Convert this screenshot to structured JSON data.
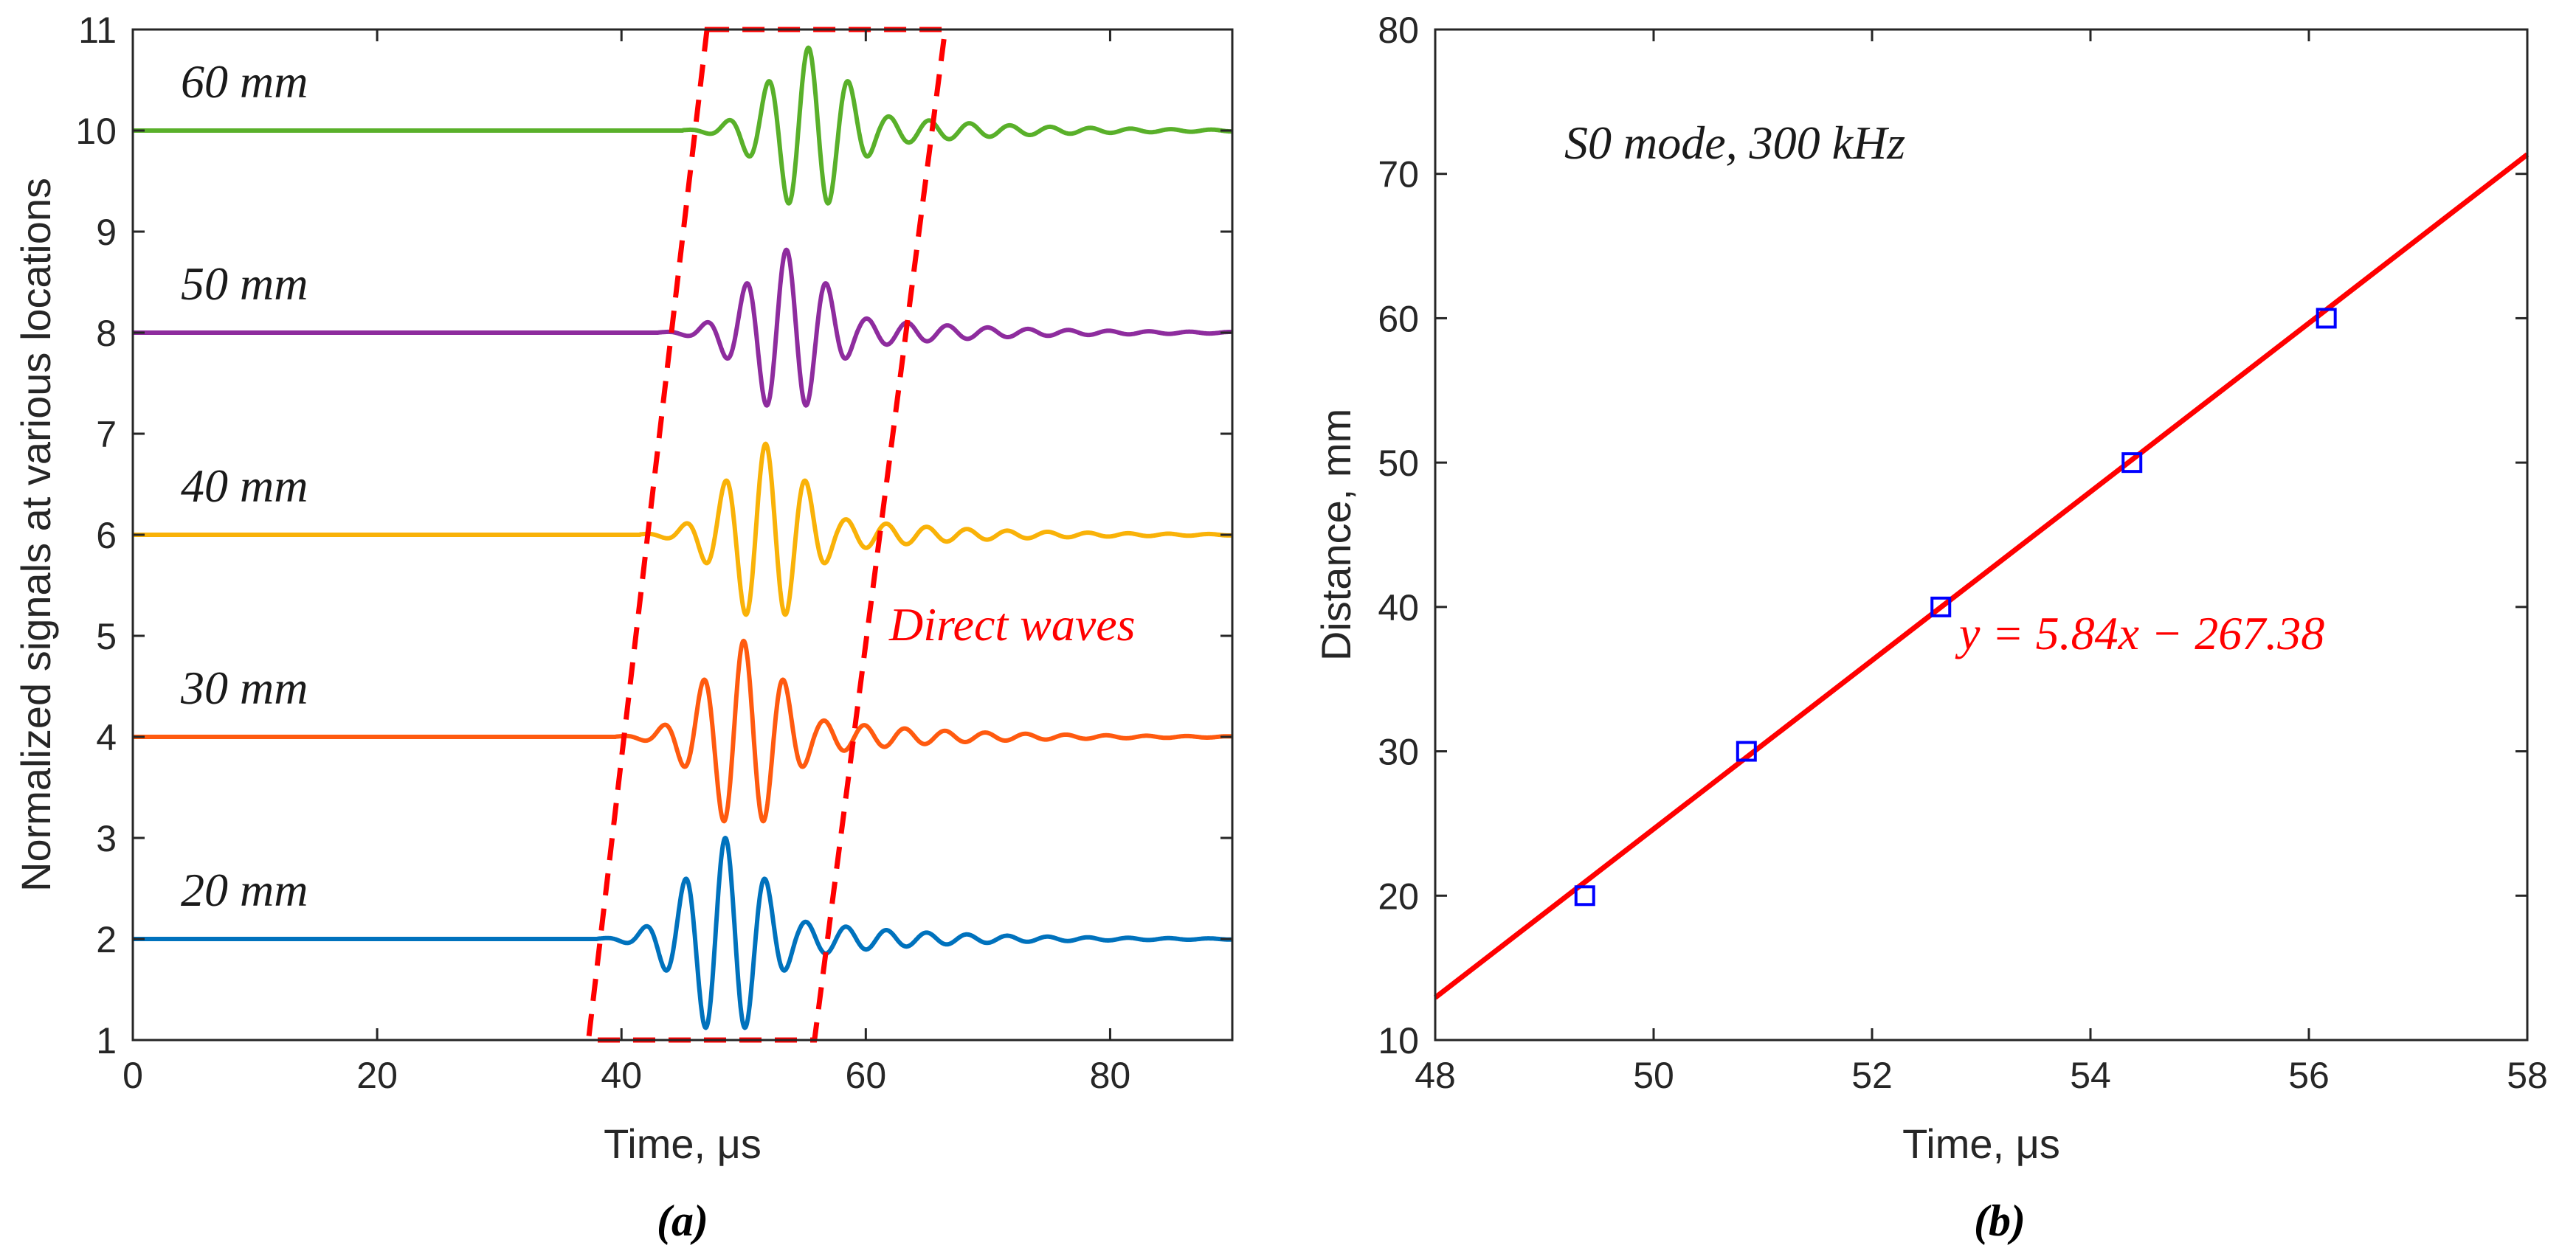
{
  "chart_data": [
    {
      "type": "line",
      "panel_label": "(a)",
      "xlabel": "Time, μs",
      "ylabel": "Normalized signals at various locations",
      "xlim": [
        0,
        90
      ],
      "ylim": [
        1,
        11
      ],
      "xticks": [
        0,
        20,
        40,
        60,
        80
      ],
      "yticks": [
        1,
        2,
        3,
        4,
        5,
        6,
        7,
        8,
        9,
        10,
        11
      ],
      "grid": false,
      "series": [
        {
          "name": "20 mm",
          "offset": 2,
          "color": "#0072bd",
          "arrival_us": 38,
          "peak_us": 48.5,
          "amplitude": 1.0,
          "period_us": 3.3
        },
        {
          "name": "30 mm",
          "offset": 4,
          "color": "#ff5a0f",
          "arrival_us": 39.5,
          "peak_us": 50.0,
          "amplitude": 0.95,
          "period_us": 3.3
        },
        {
          "name": "40 mm",
          "offset": 6,
          "color": "#f9b208",
          "arrival_us": 41.5,
          "peak_us": 51.8,
          "amplitude": 0.9,
          "period_us": 3.3
        },
        {
          "name": "50 mm",
          "offset": 8,
          "color": "#8e2c9e",
          "arrival_us": 43,
          "peak_us": 53.5,
          "amplitude": 0.82,
          "period_us": 3.3
        },
        {
          "name": "60 mm",
          "offset": 10,
          "color": "#59b02a",
          "arrival_us": 45,
          "peak_us": 55.3,
          "amplitude": 0.82,
          "period_us": 3.3
        }
      ],
      "annotations": [
        {
          "text": "Direct waves",
          "color": "#ff0000",
          "style": "dashed-box",
          "box_polygon": [
            [
              47,
              11
            ],
            [
              66.5,
              11
            ],
            [
              55.8,
              1
            ],
            [
              37.3,
              1
            ]
          ]
        }
      ]
    },
    {
      "type": "scatter",
      "panel_label": "(b)",
      "xlabel": "Time, μs",
      "ylabel": "Distance, mm",
      "xlim": [
        48,
        58
      ],
      "ylim": [
        10,
        80
      ],
      "xticks": [
        48,
        50,
        52,
        54,
        56,
        58
      ],
      "yticks": [
        10,
        20,
        30,
        40,
        50,
        60,
        70,
        80
      ],
      "grid": false,
      "annotation": "S0 mode, 300 kHz",
      "points": {
        "marker": "square",
        "color": "#0000ff",
        "x": [
          49.37,
          50.85,
          52.63,
          54.38,
          56.16
        ],
        "y": [
          20,
          30,
          40,
          50,
          60
        ]
      },
      "fit": {
        "equation": "y = 5.84x − 267.38",
        "slope": 5.84,
        "intercept": -267.38,
        "color": "#ff0000"
      }
    }
  ]
}
